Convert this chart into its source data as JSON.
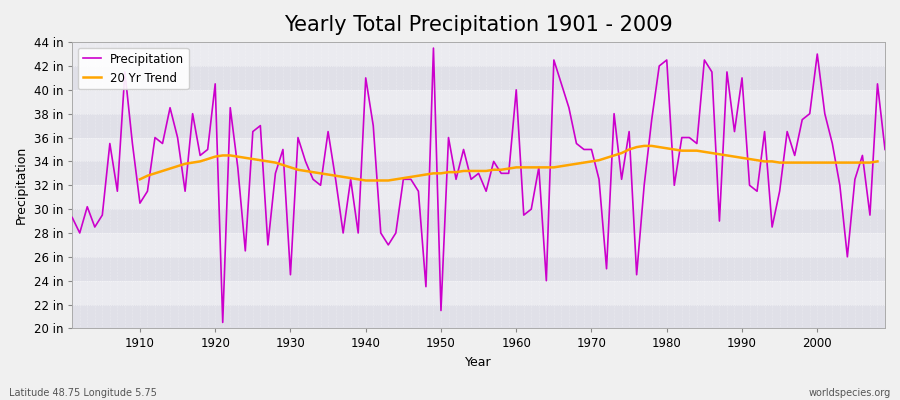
{
  "title": "Yearly Total Precipitation 1901 - 2009",
  "xlabel": "Year",
  "ylabel": "Precipitation",
  "background_color": "#f0f0f0",
  "plot_bg_color": "#e8e8ec",
  "band_color1": "#e0e0e8",
  "band_color2": "#ebebf0",
  "precip_color": "#cc00cc",
  "trend_color": "#FFA500",
  "precip_label": "Precipitation",
  "trend_label": "20 Yr Trend",
  "years": [
    1901,
    1902,
    1903,
    1904,
    1905,
    1906,
    1907,
    1908,
    1909,
    1910,
    1911,
    1912,
    1913,
    1914,
    1915,
    1916,
    1917,
    1918,
    1919,
    1920,
    1921,
    1922,
    1923,
    1924,
    1925,
    1926,
    1927,
    1928,
    1929,
    1930,
    1931,
    1932,
    1933,
    1934,
    1935,
    1936,
    1937,
    1938,
    1939,
    1940,
    1941,
    1942,
    1943,
    1944,
    1945,
    1946,
    1947,
    1948,
    1949,
    1950,
    1951,
    1952,
    1953,
    1954,
    1955,
    1956,
    1957,
    1958,
    1959,
    1960,
    1961,
    1962,
    1963,
    1964,
    1965,
    1966,
    1967,
    1968,
    1969,
    1970,
    1971,
    1972,
    1973,
    1974,
    1975,
    1976,
    1977,
    1978,
    1979,
    1980,
    1981,
    1982,
    1983,
    1984,
    1985,
    1986,
    1987,
    1988,
    1989,
    1990,
    1991,
    1992,
    1993,
    1994,
    1995,
    1996,
    1997,
    1998,
    1999,
    2000,
    2001,
    2002,
    2003,
    2004,
    2005,
    2006,
    2007,
    2008,
    2009
  ],
  "precip_in": [
    29.3,
    28.0,
    30.2,
    28.5,
    29.5,
    35.5,
    31.5,
    41.5,
    35.5,
    30.5,
    31.5,
    36.0,
    35.5,
    38.5,
    36.0,
    31.5,
    38.0,
    34.5,
    35.0,
    40.5,
    20.5,
    38.5,
    33.5,
    26.5,
    36.5,
    37.0,
    27.0,
    33.0,
    35.0,
    24.5,
    36.0,
    34.0,
    32.5,
    32.0,
    36.5,
    32.5,
    28.0,
    32.5,
    28.0,
    41.0,
    37.0,
    28.0,
    27.0,
    28.0,
    32.5,
    32.5,
    31.5,
    23.5,
    43.5,
    21.5,
    36.0,
    32.5,
    35.0,
    32.5,
    33.0,
    31.5,
    34.0,
    33.0,
    33.0,
    40.0,
    29.5,
    30.0,
    33.5,
    24.0,
    42.5,
    40.5,
    38.5,
    35.5,
    35.0,
    35.0,
    32.5,
    25.0,
    38.0,
    32.5,
    36.5,
    24.5,
    32.0,
    37.5,
    42.0,
    42.5,
    32.0,
    36.0,
    36.0,
    35.5,
    42.5,
    41.5,
    29.0,
    41.5,
    36.5,
    41.0,
    32.0,
    31.5,
    36.5,
    28.5,
    31.5,
    36.5,
    34.5,
    37.5,
    38.0,
    43.0,
    38.0,
    35.5,
    32.0,
    26.0,
    32.5,
    34.5,
    29.5,
    40.5,
    35.0
  ],
  "trend_in": [
    null,
    null,
    null,
    null,
    null,
    null,
    null,
    null,
    null,
    32.5,
    32.8,
    33.0,
    33.2,
    33.4,
    33.6,
    33.8,
    33.9,
    34.0,
    34.2,
    34.4,
    34.5,
    34.5,
    34.4,
    34.3,
    34.2,
    34.1,
    34.0,
    33.9,
    33.7,
    33.5,
    33.3,
    33.2,
    33.1,
    33.0,
    32.9,
    32.8,
    32.7,
    32.6,
    32.5,
    32.4,
    32.4,
    32.4,
    32.4,
    32.5,
    32.6,
    32.7,
    32.8,
    32.9,
    33.0,
    33.0,
    33.1,
    33.1,
    33.2,
    33.2,
    33.2,
    33.2,
    33.3,
    33.3,
    33.4,
    33.5,
    33.5,
    33.5,
    33.5,
    33.5,
    33.5,
    33.6,
    33.7,
    33.8,
    33.9,
    34.0,
    34.1,
    34.3,
    34.5,
    34.7,
    35.0,
    35.2,
    35.3,
    35.3,
    35.2,
    35.1,
    35.0,
    34.9,
    34.9,
    34.9,
    34.8,
    34.7,
    34.6,
    34.5,
    34.4,
    34.3,
    34.2,
    34.1,
    34.0,
    34.0,
    33.9,
    33.9,
    33.9,
    33.9,
    33.9,
    33.9,
    33.9,
    33.9,
    33.9,
    33.9,
    33.9,
    33.9,
    33.9,
    34.0
  ],
  "ylim": [
    20,
    44
  ],
  "yticks": [
    20,
    22,
    24,
    26,
    28,
    30,
    32,
    34,
    36,
    38,
    40,
    42,
    44
  ],
  "xlim": [
    1901,
    2009
  ],
  "xticks": [
    1910,
    1920,
    1930,
    1940,
    1950,
    1960,
    1970,
    1980,
    1990,
    2000
  ],
  "title_fontsize": 15,
  "axis_fontsize": 9,
  "tick_fontsize": 8.5,
  "footer_left": "Latitude 48.75 Longitude 5.75",
  "footer_right": "worldspecies.org"
}
